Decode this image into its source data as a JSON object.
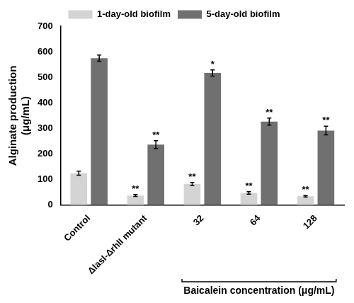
{
  "chart_data": {
    "type": "bar",
    "y_label": [
      "Alginate production",
      "(μg/mL)"
    ],
    "categories": [
      "Control",
      "ΔlasI-ΔrhlI mutant",
      "32",
      "64",
      "128"
    ],
    "series": [
      {
        "name": "1-day-old biofilm",
        "color": "#d4d4d4",
        "values": [
          125,
          38,
          83,
          48,
          35
        ],
        "errors": [
          8,
          4,
          6,
          5,
          3
        ],
        "significance": [
          null,
          "**",
          "**",
          "**",
          "**"
        ]
      },
      {
        "name": "5-day-old biofilm",
        "color": "#707070",
        "values": [
          575,
          237,
          517,
          327,
          292
        ],
        "errors": [
          12,
          15,
          12,
          14,
          17
        ],
        "significance": [
          null,
          "**",
          "*",
          "**",
          "**"
        ]
      }
    ],
    "ylim": [
      0,
      700
    ],
    "yticks": [
      0,
      100,
      200,
      300,
      400,
      500,
      600,
      700
    ],
    "grid": false,
    "legend": "top",
    "group_label": {
      "text": "Baicalein concentration (μg/mL)",
      "span": [
        "32",
        "128"
      ]
    }
  }
}
